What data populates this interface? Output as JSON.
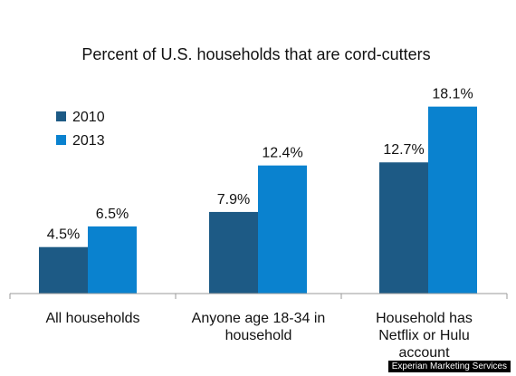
{
  "chart_data": {
    "type": "bar",
    "title": "Percent of U.S. households that are cord-cutters",
    "categories": [
      [
        "All households"
      ],
      [
        "Anyone age 18-34 in",
        "household"
      ],
      [
        "Household has",
        "Netflix or Hulu",
        "account"
      ]
    ],
    "series": [
      {
        "name": "2010",
        "color": "#1d5a85",
        "values": [
          4.5,
          7.9,
          12.7
        ],
        "labels": [
          "4.5%",
          "7.9%",
          "12.7%"
        ]
      },
      {
        "name": "2013",
        "color": "#0a82cf",
        "values": [
          6.5,
          12.4,
          18.1
        ],
        "labels": [
          "6.5%",
          "12.4%",
          "18.1%"
        ]
      }
    ],
    "ylim": [
      0,
      20
    ],
    "grid": false,
    "yaxis_visible": false,
    "legend_position": "top-left",
    "axis_color": "#9a9a9a"
  },
  "source_credit": "Experian Marketing Services"
}
